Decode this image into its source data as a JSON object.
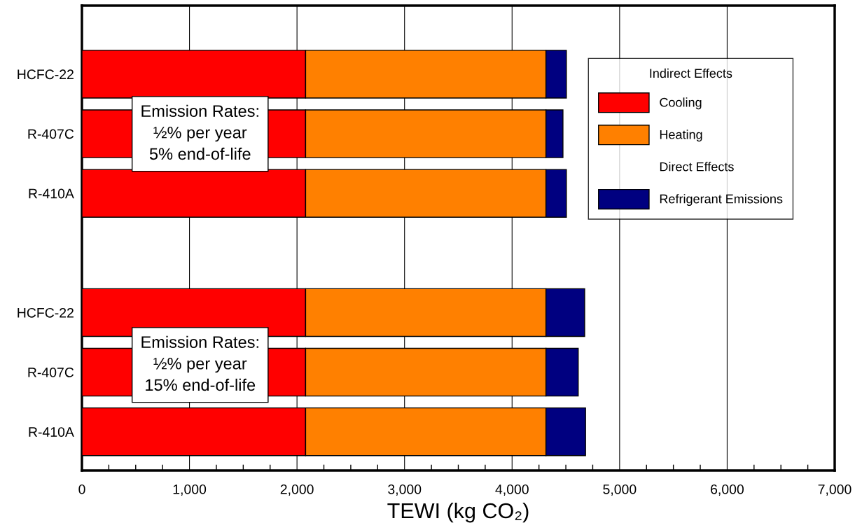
{
  "chart_data": {
    "type": "bar",
    "orientation": "horizontal",
    "stacked": true,
    "categories": [
      "HCFC-22",
      "R-407C",
      "R-410A",
      null,
      "HCFC-22",
      "R-407C",
      "R-410A"
    ],
    "series": [
      {
        "name": "Cooling",
        "color": "#ff0000",
        "values": [
          2080,
          2080,
          2080,
          null,
          2080,
          2080,
          2080
        ]
      },
      {
        "name": "Heating",
        "color": "#ff8000",
        "values": [
          2235,
          2235,
          2235,
          null,
          2235,
          2235,
          2235
        ]
      },
      {
        "name": "Refrigerant Emissions",
        "color": "#000080",
        "values": [
          190,
          158,
          190,
          null,
          360,
          300,
          368
        ]
      }
    ],
    "xlabel": "TEWI (kg CO₂)",
    "xlim": [
      0,
      7000
    ],
    "xticks": [
      {
        "value": 0,
        "label": "0"
      },
      {
        "value": 1000,
        "label": "1,000"
      },
      {
        "value": 2000,
        "label": "2,000"
      },
      {
        "value": 3000,
        "label": "3,000"
      },
      {
        "value": 4000,
        "label": "4,000"
      },
      {
        "value": 5000,
        "label": "5,000"
      },
      {
        "value": 6000,
        "label": "6,000"
      },
      {
        "value": 7000,
        "label": "7,000"
      }
    ],
    "grid": "x",
    "legend": "top right",
    "legend_title": "Indirect Effects",
    "annotations": [
      "Emission Rates:\n½% per year\n5% end-of-life",
      "Emission Rates:\n½% per year\n15% end-of-life",
      "Direct Effects"
    ]
  }
}
